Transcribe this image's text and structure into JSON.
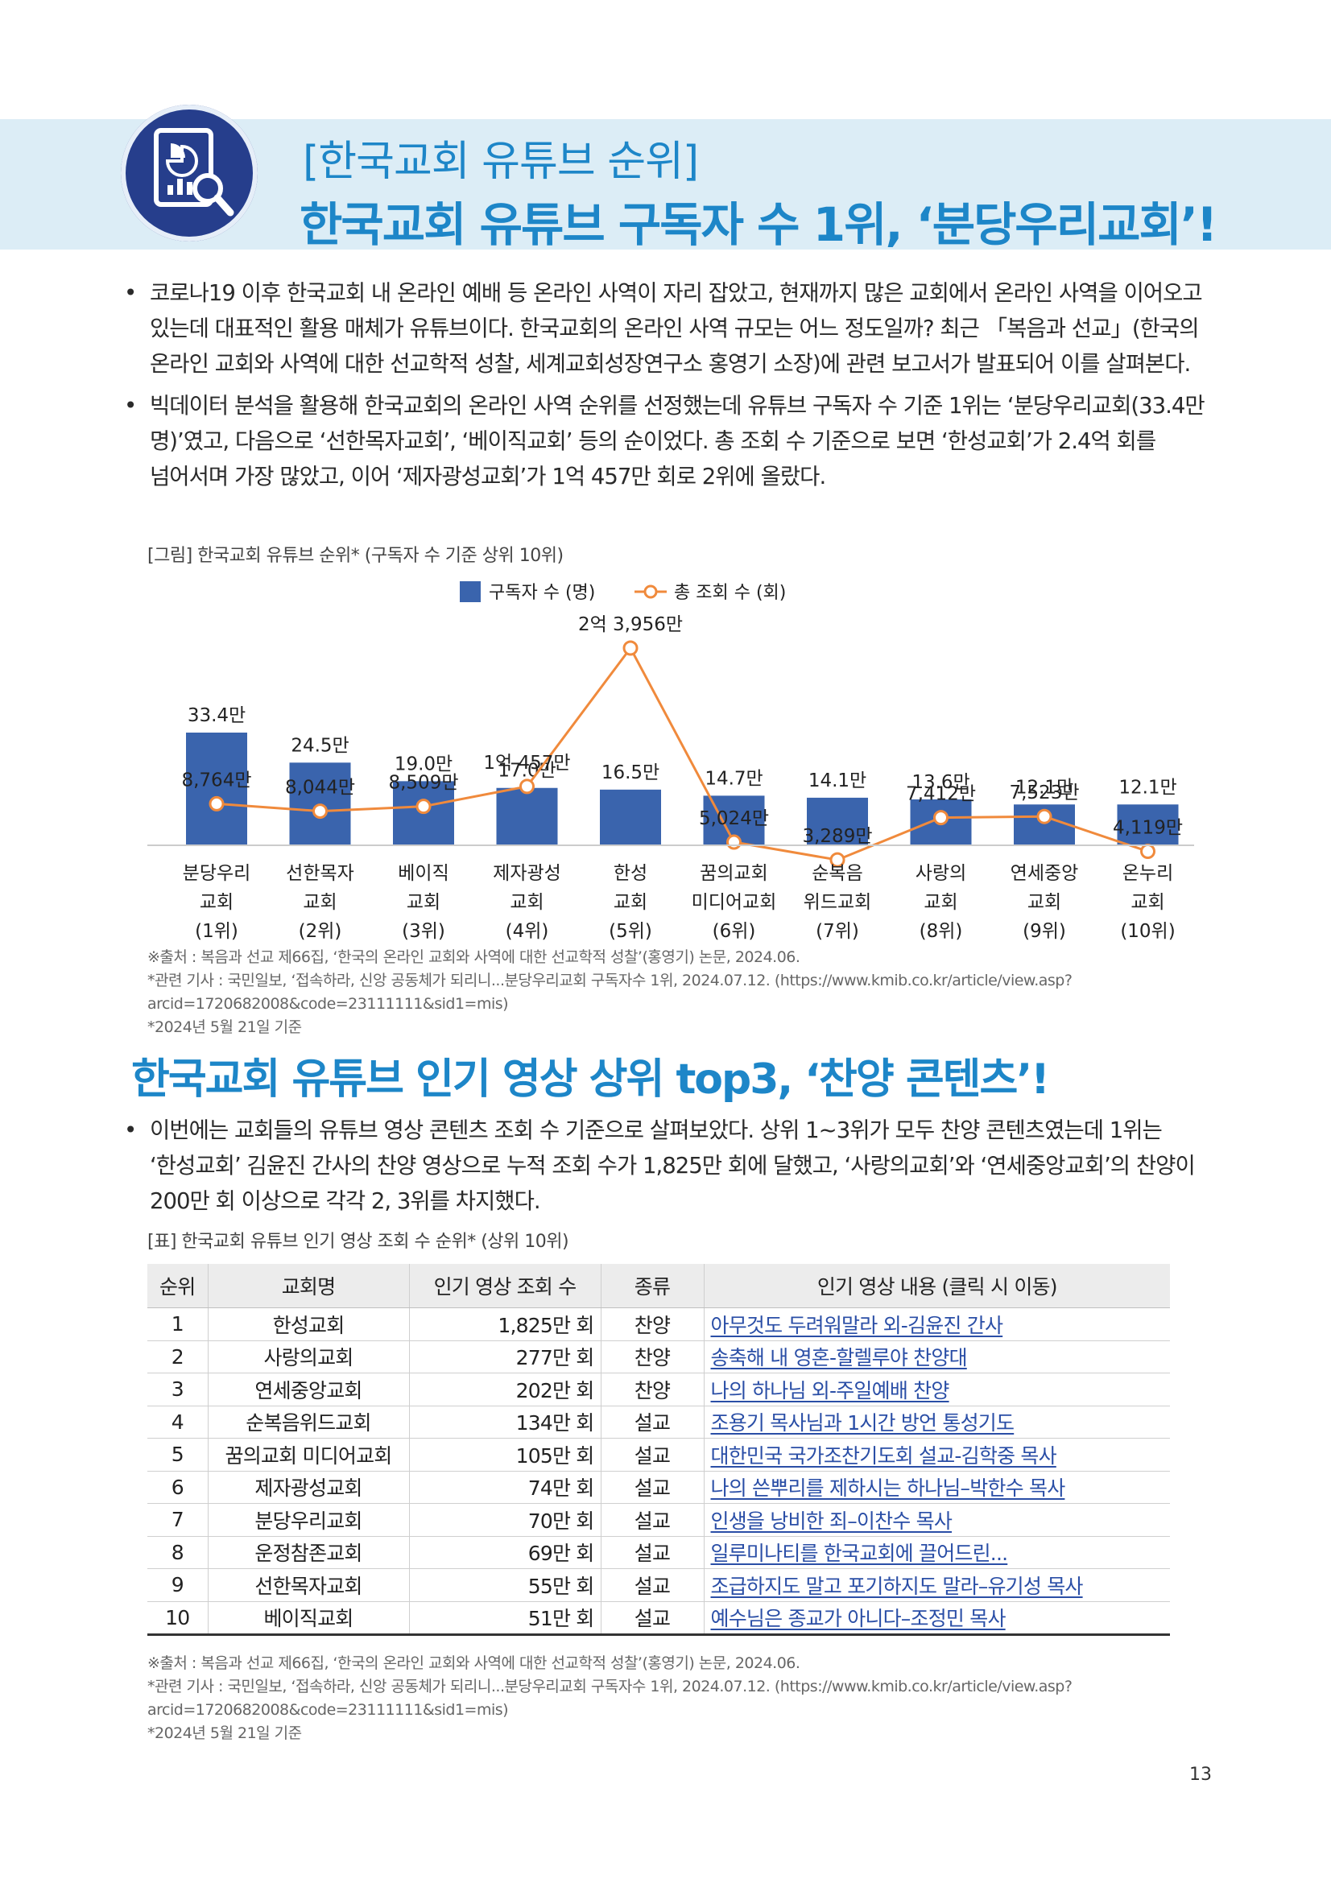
{
  "header": {
    "kicker": "[한국교회 유튜브 순위]",
    "title": "한국교회 유튜브 구독자 수 1위, ‘분당우리교회’!"
  },
  "intro_bullets": [
    "코로나19 이후 한국교회 내 온라인 예배 등 온라인 사역이 자리 잡았고, 현재까지 많은 교회에서 온라인 사역을 이어오고 있는데 대표적인 활용 매체가 유튜브이다. 한국교회의 온라인 사역 규모는 어느 정도일까? 최근 「복음과 선교」(한국의 온라인 교회와 사역에 대한 선교학적 성찰, 세계교회성장연구소 홍영기 소장)에 관련 보고서가 발표되어 이를 살펴본다.",
    "빅데이터 분석을 활용해 한국교회의 온라인 사역 순위를 선정했는데 유튜브 구독자 수 기준 1위는 ‘분당우리교회(33.4만 명)’였고, 다음으로 ‘선한목자교회’, ‘베이직교회’ 등의 순이었다. 총 조회 수 기준으로 보면 ‘한성교회’가 2.4억 회를 넘어서며 가장 많았고, 이어 ‘제자광성교회’가 1억 457만 회로 2위에 올랐다."
  ],
  "chart_caption": "[그림] 한국교회 유튜브 순위* (구독자 수 기준 상위 10위)",
  "chart_data": {
    "type": "bar",
    "title": "",
    "categories": [
      [
        "분당우리",
        "교회",
        "(1위)"
      ],
      [
        "선한목자",
        "교회",
        "(2위)"
      ],
      [
        "베이직",
        "교회",
        "(3위)"
      ],
      [
        "제자광성",
        "교회",
        "(4위)"
      ],
      [
        "한성",
        "교회",
        "(5위)"
      ],
      [
        "꿈의교회",
        "미디어교회",
        "(6위)"
      ],
      [
        "순복음",
        "위드교회",
        "(7위)"
      ],
      [
        "사랑의",
        "교회",
        "(8위)"
      ],
      [
        "연세중앙",
        "교회",
        "(9위)"
      ],
      [
        "온누리",
        "교회",
        "(10위)"
      ]
    ],
    "series": [
      {
        "name": "구독자 수 (명)",
        "type": "bar",
        "values": [
          334000,
          245000,
          190000,
          170000,
          165000,
          147000,
          141000,
          136000,
          121000,
          121000
        ],
        "labels": [
          "33.4만",
          "24.5만",
          "19.0만",
          "17.0만",
          "16.5만",
          "14.7만",
          "14.1만",
          "13.6만",
          "12.1만",
          "12.1만"
        ],
        "color": "#3a64ad"
      },
      {
        "name": "총 조회 수 (회)",
        "type": "line",
        "values": [
          87640000,
          80440000,
          85090000,
          104570000,
          239560000,
          50240000,
          32890000,
          74120000,
          75230000,
          41190000
        ],
        "labels": [
          "8,764만",
          "8,044만",
          "8,509만",
          "1억 457만",
          "2억 3,956만",
          "5,024만",
          "3,289만",
          "7,412만",
          "7,523만",
          "4,119만"
        ],
        "color": "#f08a3c"
      }
    ],
    "legend": "top-center",
    "grid": false
  },
  "chart_notes": [
    "※출처 : 복음과 선교 제66집, ‘한국의 온라인 교회와 사역에 대한 선교학적 성찰’(홍영기) 논문, 2024.06.",
    "*관련 기사 : 국민일보, ‘접속하라, 신앙 공동체가 되리니...분당우리교회 구독자수 1위, 2024.07.12. (https://www.kmib.co.kr/article/view.asp?",
    "arcid=1720682008&code=23111111&sid1=mis)",
    "*2024년 5월 21일 기준"
  ],
  "section2": {
    "title": "한국교회 유튜브 인기 영상 상위 top3, ‘찬양 콘텐츠’!",
    "bullet": "이번에는 교회들의 유튜브 영상 콘텐츠 조회 수 기준으로 살펴보았다. 상위 1~3위가 모두 찬양 콘텐츠였는데 1위는 ‘한성교회’ 김윤진 간사의 찬양 영상으로 누적 조회 수가 1,825만 회에 달했고, ‘사랑의교회’와 ‘연세중앙교회’의 찬양이 200만 회 이상으로 각각 2, 3위를 차지했다."
  },
  "table_caption": "[표] 한국교회 유튜브 인기 영상 조회 수 순위* (상위 10위)",
  "table": {
    "headers": [
      "순위",
      "교회명",
      "인기 영상 조회 수",
      "종류",
      "인기 영상 내용 (클릭 시 이동)"
    ],
    "rows": [
      [
        "1",
        "한성교회",
        "1,825만 회",
        "찬양",
        "아무것도 두려워말라 외-김윤진 간사"
      ],
      [
        "2",
        "사랑의교회",
        "277만 회",
        "찬양",
        "송축해 내 영혼-할렐루야 찬양대"
      ],
      [
        "3",
        "연세중앙교회",
        "202만 회",
        "찬양",
        "나의 하나님 외-주일예배 찬양"
      ],
      [
        "4",
        "순복음위드교회",
        "134만 회",
        "설교",
        "조용기 목사님과 1시간 방언 통성기도"
      ],
      [
        "5",
        "꿈의교회 미디어교회",
        "105만 회",
        "설교",
        "대한민국 국가조찬기도회 설교-김학중 목사"
      ],
      [
        "6",
        "제자광성교회",
        "74만 회",
        "설교",
        "나의 쓴뿌리를 제하시는 하나님–박한수 목사"
      ],
      [
        "7",
        "분당우리교회",
        "70만 회",
        "설교",
        "인생을 낭비한 죄–이찬수 목사"
      ],
      [
        "8",
        "운정참존교회",
        "69만 회",
        "설교",
        "일루미나티를 한국교회에 끌어드린..."
      ],
      [
        "9",
        "선한목자교회",
        "55만 회",
        "설교",
        "조급하지도 말고 포기하지도 말라–유기성 목사"
      ],
      [
        "10",
        "베이직교회",
        "51만 회",
        "설교",
        "예수님은 종교가 아니다–조정민 목사"
      ]
    ]
  },
  "table_notes": [
    "※출처 : 복음과 선교 제66집, ‘한국의 온라인 교회와 사역에 대한 선교학적 성찰’(홍영기) 논문, 2024.06.",
    "*관련 기사 : 국민일보, ‘접속하라, 신앙 공동체가 되리니...분당우리교회 구독자수 1위, 2024.07.12. (https://www.kmib.co.kr/article/view.asp?",
    "arcid=1720682008&code=23111111&sid1=mis)",
    "*2024년 5월 21일 기준"
  ],
  "page_number": "13",
  "colors": {
    "accent": "#1d86c8",
    "band": "#dcedf6",
    "logo": "#263e8c",
    "bar": "#3a64ad",
    "line": "#f08a3c",
    "link": "#2a4ea6"
  }
}
